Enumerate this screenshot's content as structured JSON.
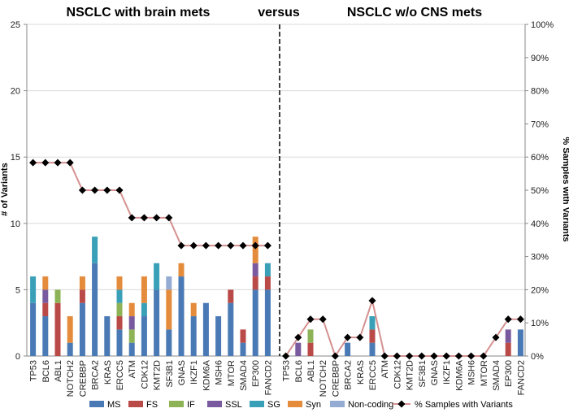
{
  "chart_data": {
    "type": "bar",
    "titles": {
      "left": "NSCLC with brain mets",
      "middle": "versus",
      "right": "NSCLC w/o CNS mets"
    },
    "ylabel": "# of Variants",
    "y2label": "% Samples with Variants",
    "ylim": [
      0,
      25
    ],
    "y2lim": [
      0,
      100
    ],
    "yticks": [
      "0",
      "5",
      "10",
      "15",
      "20",
      "25"
    ],
    "y2ticks": [
      "0%",
      "10%",
      "20%",
      "30%",
      "40%",
      "50%",
      "60%",
      "70%",
      "80%",
      "90%",
      "100%"
    ],
    "categories": [
      "TP53",
      "BCL6",
      "ABL1",
      "NOTCH2",
      "CREBBP",
      "BRCA2",
      "KRAS",
      "ERCC5",
      "ATM",
      "CDK12",
      "KMT2D",
      "SF3B1",
      "GNAS",
      "IKZF1",
      "KDM6A",
      "MSH6",
      "MTOR",
      "SMAD4",
      "EP300",
      "FANCD2"
    ],
    "series_colors": {
      "MS": "#4a7ab5",
      "FS": "#b94a48",
      "IF": "#8db356",
      "SSL": "#7a5a9e",
      "SG": "#3aa0b8",
      "Syn": "#e48c3c",
      "Non-coding": "#94acd4"
    },
    "line_color": "#d49090",
    "legend": [
      "MS",
      "FS",
      "IF",
      "SSL",
      "SG",
      "Syn",
      "Non-coding",
      "% Samples with Variants"
    ],
    "groups": [
      {
        "name": "NSCLC with brain mets",
        "stacks": [
          {
            "MS": 4,
            "FS": 0,
            "IF": 0,
            "SSL": 0,
            "SG": 2,
            "Syn": 0,
            "Non-coding": 0
          },
          {
            "MS": 3,
            "FS": 1,
            "IF": 0,
            "SSL": 1,
            "SG": 0,
            "Syn": 1,
            "Non-coding": 0
          },
          {
            "MS": 0,
            "FS": 4,
            "IF": 1,
            "SSL": 0,
            "SG": 0,
            "Syn": 0,
            "Non-coding": 0
          },
          {
            "MS": 1,
            "FS": 0,
            "IF": 0,
            "SSL": 0,
            "SG": 0,
            "Syn": 2,
            "Non-coding": 0
          },
          {
            "MS": 4,
            "FS": 1,
            "IF": 0,
            "SSL": 0,
            "SG": 0,
            "Syn": 1,
            "Non-coding": 0
          },
          {
            "MS": 7,
            "FS": 0,
            "IF": 0,
            "SSL": 0,
            "SG": 2,
            "Syn": 0,
            "Non-coding": 0
          },
          {
            "MS": 3,
            "FS": 0,
            "IF": 0,
            "SSL": 0,
            "SG": 0,
            "Syn": 0,
            "Non-coding": 0
          },
          {
            "MS": 2,
            "FS": 1,
            "IF": 1,
            "SSL": 0,
            "SG": 1,
            "Syn": 1,
            "Non-coding": 0
          },
          {
            "MS": 1,
            "FS": 0,
            "IF": 1,
            "SSL": 1,
            "SG": 0,
            "Syn": 1,
            "Non-coding": 0
          },
          {
            "MS": 3,
            "FS": 0,
            "IF": 0,
            "SSL": 0,
            "SG": 1,
            "Syn": 2,
            "Non-coding": 0
          },
          {
            "MS": 5,
            "FS": 0,
            "IF": 0,
            "SSL": 0,
            "SG": 2,
            "Syn": 0,
            "Non-coding": 0
          },
          {
            "MS": 2,
            "FS": 0,
            "IF": 0,
            "SSL": 0,
            "SG": 0,
            "Syn": 3,
            "Non-coding": 1
          },
          {
            "MS": 6,
            "FS": 0,
            "IF": 0,
            "SSL": 0,
            "SG": 0,
            "Syn": 1,
            "Non-coding": 0
          },
          {
            "MS": 3,
            "FS": 0,
            "IF": 0,
            "SSL": 0,
            "SG": 0,
            "Syn": 1,
            "Non-coding": 0
          },
          {
            "MS": 4,
            "FS": 0,
            "IF": 0,
            "SSL": 0,
            "SG": 0,
            "Syn": 0,
            "Non-coding": 0
          },
          {
            "MS": 3,
            "FS": 0,
            "IF": 0,
            "SSL": 0,
            "SG": 0,
            "Syn": 0,
            "Non-coding": 0
          },
          {
            "MS": 4,
            "FS": 1,
            "IF": 0,
            "SSL": 0,
            "SG": 0,
            "Syn": 0,
            "Non-coding": 0
          },
          {
            "MS": 1,
            "FS": 1,
            "IF": 0,
            "SSL": 0,
            "SG": 0,
            "Syn": 0,
            "Non-coding": 0
          },
          {
            "MS": 5,
            "FS": 1,
            "IF": 0,
            "SSL": 1,
            "SG": 0,
            "Syn": 2,
            "Non-coding": 0
          },
          {
            "MS": 5,
            "FS": 1,
            "IF": 0,
            "SSL": 0,
            "SG": 1,
            "Syn": 0,
            "Non-coding": 0
          }
        ],
        "pct": [
          58.3,
          58.3,
          58.3,
          58.3,
          50,
          50,
          50,
          50,
          41.7,
          41.7,
          41.7,
          41.7,
          33.3,
          33.3,
          33.3,
          33.3,
          33.3,
          33.3,
          33.3,
          33.3
        ]
      },
      {
        "name": "NSCLC w/o CNS mets",
        "stacks": [
          {
            "MS": 0,
            "FS": 0,
            "IF": 0,
            "SSL": 0,
            "SG": 0,
            "Syn": 0,
            "Non-coding": 0
          },
          {
            "MS": 0,
            "FS": 0,
            "IF": 0,
            "SSL": 1,
            "SG": 0,
            "Syn": 0,
            "Non-coding": 0
          },
          {
            "MS": 0,
            "FS": 1,
            "IF": 1,
            "SSL": 0,
            "SG": 0,
            "Syn": 0,
            "Non-coding": 0
          },
          {
            "MS": 0,
            "FS": 0,
            "IF": 0,
            "SSL": 0,
            "SG": 0,
            "Syn": 0,
            "Non-coding": 0
          },
          {
            "MS": 0,
            "FS": 0,
            "IF": 0,
            "SSL": 0,
            "SG": 0,
            "Syn": 0,
            "Non-coding": 0
          },
          {
            "MS": 1,
            "FS": 0,
            "IF": 0,
            "SSL": 0,
            "SG": 0,
            "Syn": 0,
            "Non-coding": 0
          },
          {
            "MS": 0,
            "FS": 0,
            "IF": 0,
            "SSL": 0,
            "SG": 0,
            "Syn": 0,
            "Non-coding": 0
          },
          {
            "MS": 1,
            "FS": 1,
            "IF": 0,
            "SSL": 0,
            "SG": 1,
            "Syn": 0,
            "Non-coding": 0
          },
          {
            "MS": 0,
            "FS": 0,
            "IF": 0,
            "SSL": 0,
            "SG": 0,
            "Syn": 0,
            "Non-coding": 0
          },
          {
            "MS": 0,
            "FS": 0,
            "IF": 0,
            "SSL": 0,
            "SG": 0,
            "Syn": 0,
            "Non-coding": 0
          },
          {
            "MS": 0,
            "FS": 0,
            "IF": 0,
            "SSL": 0,
            "SG": 0,
            "Syn": 0,
            "Non-coding": 0
          },
          {
            "MS": 0,
            "FS": 0,
            "IF": 0,
            "SSL": 0,
            "SG": 0,
            "Syn": 0,
            "Non-coding": 0
          },
          {
            "MS": 0,
            "FS": 0,
            "IF": 0,
            "SSL": 0,
            "SG": 0,
            "Syn": 0,
            "Non-coding": 0
          },
          {
            "MS": 0,
            "FS": 0,
            "IF": 0,
            "SSL": 0,
            "SG": 0,
            "Syn": 0,
            "Non-coding": 0
          },
          {
            "MS": 0,
            "FS": 0,
            "IF": 0,
            "SSL": 0,
            "SG": 0,
            "Syn": 0,
            "Non-coding": 0
          },
          {
            "MS": 0,
            "FS": 0,
            "IF": 0,
            "SSL": 0,
            "SG": 0,
            "Syn": 0,
            "Non-coding": 0
          },
          {
            "MS": 0,
            "FS": 0,
            "IF": 0,
            "SSL": 0,
            "SG": 0,
            "Syn": 0,
            "Non-coding": 0
          },
          {
            "MS": 0,
            "FS": 0,
            "IF": 0,
            "SSL": 0,
            "SG": 0,
            "Syn": 0,
            "Non-coding": 0
          },
          {
            "MS": 0,
            "FS": 1,
            "IF": 0,
            "SSL": 1,
            "SG": 0,
            "Syn": 0,
            "Non-coding": 0
          },
          {
            "MS": 2,
            "FS": 0,
            "IF": 0,
            "SSL": 0,
            "SG": 0,
            "Syn": 0,
            "Non-coding": 0
          }
        ],
        "pct": [
          0,
          5.6,
          11.1,
          11.1,
          0,
          5.6,
          5.6,
          16.7,
          0,
          0,
          0,
          0,
          0,
          0,
          0,
          0,
          0,
          5.6,
          11.1,
          11.1
        ]
      }
    ]
  }
}
